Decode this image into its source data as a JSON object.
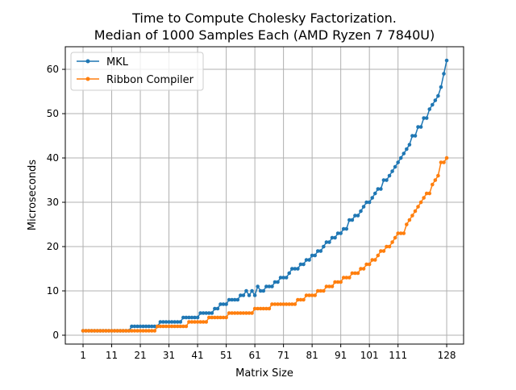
{
  "chart_data": {
    "type": "line",
    "title": [
      "Time to Compute Cholesky Factorization.",
      "Median of 1000 Samples Each (AMD Ryzen 7 7840U)"
    ],
    "xlabel": "Matrix Size",
    "ylabel": "Microseconds",
    "xlim": [
      -5.2,
      133.9
    ],
    "ylim": [
      -2,
      65.1
    ],
    "xticks": [
      1,
      11,
      21,
      31,
      41,
      51,
      61,
      71,
      81,
      91,
      101,
      111,
      128
    ],
    "yticks": [
      0,
      10,
      20,
      30,
      40,
      50,
      60
    ],
    "grid": true,
    "legend_position": "top-left",
    "x_start": 1,
    "series": [
      {
        "name": "MKL",
        "color": "#1f77b4",
        "values": [
          1,
          1,
          1,
          1,
          1,
          1,
          1,
          1,
          1,
          1,
          1,
          1,
          1,
          1,
          1,
          1,
          1,
          2,
          2,
          2,
          2,
          2,
          2,
          2,
          2,
          2,
          2,
          3,
          3,
          3,
          3,
          3,
          3,
          3,
          3,
          4,
          4,
          4,
          4,
          4,
          4,
          5,
          5,
          5,
          5,
          5,
          6,
          6,
          7,
          7,
          7,
          8,
          8,
          8,
          8,
          9,
          9,
          10,
          9,
          10,
          9,
          11,
          10,
          10,
          11,
          11,
          11,
          12,
          12,
          13,
          13,
          13,
          14,
          15,
          15,
          15,
          16,
          16,
          17,
          17,
          18,
          18,
          19,
          19,
          20,
          21,
          21,
          22,
          22,
          23,
          23,
          24,
          24,
          26,
          26,
          27,
          27,
          28,
          29,
          30,
          30,
          31,
          32,
          33,
          33,
          35,
          35,
          36,
          37,
          38,
          39,
          40,
          41,
          42,
          43,
          45,
          45,
          47,
          47,
          49,
          49,
          51,
          52,
          53,
          54,
          56,
          59,
          62
        ]
      },
      {
        "name": "Ribbon Compiler",
        "color": "#ff7f0e",
        "values": [
          1,
          1,
          1,
          1,
          1,
          1,
          1,
          1,
          1,
          1,
          1,
          1,
          1,
          1,
          1,
          1,
          1,
          1,
          1,
          1,
          1,
          1,
          1,
          1,
          1,
          1,
          2,
          2,
          2,
          2,
          2,
          2,
          2,
          2,
          2,
          2,
          2,
          3,
          3,
          3,
          3,
          3,
          3,
          3,
          4,
          4,
          4,
          4,
          4,
          4,
          4,
          5,
          5,
          5,
          5,
          5,
          5,
          5,
          5,
          5,
          6,
          6,
          6,
          6,
          6,
          6,
          7,
          7,
          7,
          7,
          7,
          7,
          7,
          7,
          7,
          8,
          8,
          8,
          9,
          9,
          9,
          9,
          10,
          10,
          10,
          11,
          11,
          11,
          12,
          12,
          12,
          13,
          13,
          13,
          14,
          14,
          14,
          15,
          15,
          16,
          16,
          17,
          17,
          18,
          19,
          19,
          20,
          20,
          21,
          22,
          23,
          23,
          23,
          25,
          26,
          27,
          28,
          29,
          30,
          31,
          32,
          32,
          34,
          35,
          36,
          39,
          39,
          40
        ]
      }
    ]
  }
}
